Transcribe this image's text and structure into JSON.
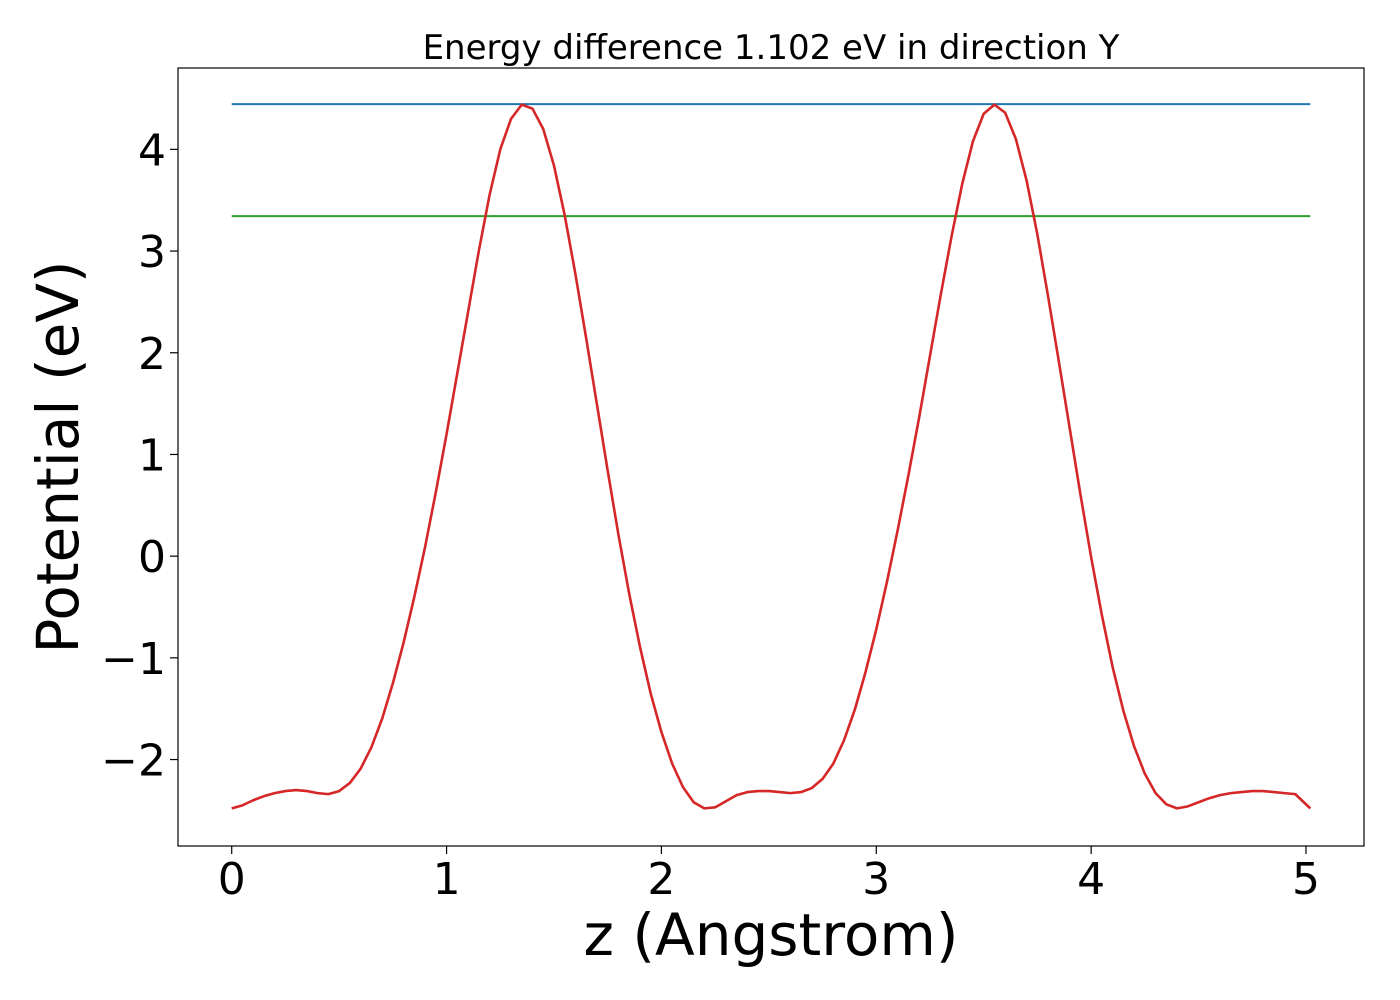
{
  "chart_data": {
    "type": "line",
    "title": "Energy difference 1.102 eV in direction Y",
    "xlabel": "z (Angstrom)",
    "ylabel": "Potential (eV)",
    "xlim": [
      -0.25,
      5.27
    ],
    "ylim": [
      -2.85,
      4.8
    ],
    "x_ticks": [
      0,
      1,
      2,
      3,
      4,
      5
    ],
    "y_ticks": [
      -2,
      -1,
      0,
      1,
      2,
      3,
      4
    ],
    "x_tick_labels": [
      "0",
      "1",
      "2",
      "3",
      "4",
      "5"
    ],
    "y_tick_labels": [
      "−2",
      "−1",
      "0",
      "1",
      "2",
      "3",
      "4"
    ],
    "grid": false,
    "series": [
      {
        "color": "#1f77b4",
        "x": [
          0,
          5.02
        ],
        "y": [
          4.445,
          4.445
        ]
      },
      {
        "color": "#2ca02c",
        "x": [
          0,
          5.02
        ],
        "y": [
          3.343,
          3.343
        ]
      },
      {
        "color": "#d62728",
        "x": [
          0.0,
          0.05,
          0.1,
          0.15,
          0.2,
          0.25,
          0.3,
          0.35,
          0.4,
          0.45,
          0.5,
          0.55,
          0.6,
          0.65,
          0.7,
          0.75,
          0.8,
          0.85,
          0.9,
          0.95,
          1.0,
          1.05,
          1.1,
          1.15,
          1.2,
          1.25,
          1.3,
          1.35,
          1.4,
          1.45,
          1.5,
          1.55,
          1.6,
          1.65,
          1.7,
          1.75,
          1.8,
          1.85,
          1.9,
          1.95,
          2.0,
          2.05,
          2.1,
          2.15,
          2.2,
          2.25,
          2.3,
          2.35,
          2.4,
          2.45,
          2.5,
          2.55,
          2.6,
          2.65,
          2.7,
          2.75,
          2.8,
          2.85,
          2.9,
          2.95,
          3.0,
          3.05,
          3.1,
          3.15,
          3.2,
          3.25,
          3.3,
          3.35,
          3.4,
          3.45,
          3.5,
          3.55,
          3.6,
          3.65,
          3.7,
          3.75,
          3.8,
          3.85,
          3.9,
          3.95,
          4.0,
          4.05,
          4.1,
          4.15,
          4.2,
          4.25,
          4.3,
          4.35,
          4.4,
          4.45,
          4.5,
          4.55,
          4.6,
          4.65,
          4.7,
          4.75,
          4.8,
          4.85,
          4.9,
          4.95,
          5.02
        ],
        "y": [
          -2.48,
          -2.45,
          -2.4,
          -2.36,
          -2.33,
          -2.31,
          -2.3,
          -2.31,
          -2.33,
          -2.34,
          -2.31,
          -2.23,
          -2.09,
          -1.88,
          -1.6,
          -1.25,
          -0.85,
          -0.4,
          0.09,
          0.63,
          1.2,
          1.8,
          2.4,
          3.0,
          3.55,
          4.0,
          4.3,
          4.44,
          4.4,
          4.2,
          3.84,
          3.35,
          2.77,
          2.14,
          1.49,
          0.84,
          0.21,
          -0.37,
          -0.89,
          -1.35,
          -1.73,
          -2.04,
          -2.27,
          -2.42,
          -2.48,
          -2.47,
          -2.41,
          -2.35,
          -2.32,
          -2.31,
          -2.31,
          -2.32,
          -2.33,
          -2.32,
          -2.28,
          -2.19,
          -2.04,
          -1.81,
          -1.51,
          -1.14,
          -0.72,
          -0.25,
          0.26,
          0.8,
          1.37,
          1.97,
          2.57,
          3.14,
          3.66,
          4.08,
          4.35,
          4.44,
          4.36,
          4.1,
          3.69,
          3.16,
          2.55,
          1.91,
          1.26,
          0.61,
          -0.01,
          -0.58,
          -1.09,
          -1.52,
          -1.87,
          -2.14,
          -2.33,
          -2.44,
          -2.48,
          -2.46,
          -2.42,
          -2.38,
          -2.35,
          -2.33,
          -2.32,
          -2.31,
          -2.31,
          -2.32,
          -2.33,
          -2.34,
          -2.48
        ]
      }
    ]
  }
}
